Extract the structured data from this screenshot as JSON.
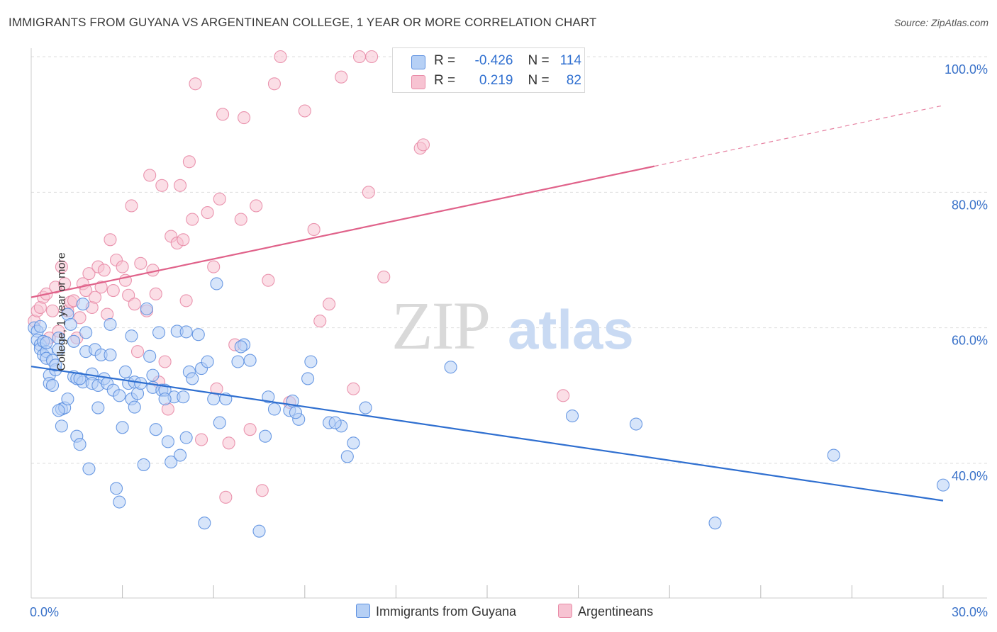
{
  "title": "IMMIGRANTS FROM GUYANA VS ARGENTINEAN COLLEGE, 1 YEAR OR MORE CORRELATION CHART",
  "source": "Source: ZipAtlas.com",
  "watermark": {
    "zip": "ZIP",
    "atlas": "atlas"
  },
  "colors": {
    "blue_fill": "#b6d0f5",
    "blue_stroke": "#5b8fe0",
    "blue_line": "#2f6fd0",
    "pink_fill": "#f7c3d2",
    "pink_stroke": "#e88aa6",
    "pink_line": "#e0628a",
    "axis_text": "#3a72c9",
    "grid": "#dddddd"
  },
  "legend": {
    "rows": [
      {
        "r_label": "R =",
        "r_value": "-0.426",
        "n_label": "N =",
        "n_value": "114"
      },
      {
        "r_label": "R =",
        "r_value": "0.219",
        "n_label": "N =",
        "n_value": "82"
      }
    ]
  },
  "bottom_legend": {
    "series_a": "Immigrants from Guyana",
    "series_b": "Argentineans"
  },
  "chart_data": {
    "type": "scatter",
    "xlabel": "",
    "ylabel": "College, 1 year or more",
    "xlim": [
      0,
      30
    ],
    "ylim": [
      22,
      103
    ],
    "x_tick_labels": [
      {
        "value": 0,
        "label": "0.0%"
      },
      {
        "value": 30,
        "label": "30.0%"
      }
    ],
    "y_tick_labels": [
      {
        "value": 40,
        "label": "40.0%"
      },
      {
        "value": 60,
        "label": "60.0%"
      },
      {
        "value": 80,
        "label": "80.0%"
      },
      {
        "value": 100,
        "label": "100.0%"
      }
    ],
    "grid": "horizontal dashed",
    "series": [
      {
        "name": "Immigrants from Guyana",
        "trend": {
          "x": [
            0,
            30
          ],
          "y": [
            54.3,
            34.5
          ],
          "style": "solid"
        },
        "points": [
          [
            0.1,
            60.0
          ],
          [
            0.2,
            59.5
          ],
          [
            0.2,
            58.2
          ],
          [
            0.3,
            57.5
          ],
          [
            0.3,
            56.9
          ],
          [
            0.4,
            56.0
          ],
          [
            0.4,
            58.0
          ],
          [
            0.5,
            56.5
          ],
          [
            0.5,
            55.5
          ],
          [
            0.6,
            53.0
          ],
          [
            0.6,
            51.8
          ],
          [
            0.7,
            51.5
          ],
          [
            0.7,
            55.2
          ],
          [
            0.8,
            53.8
          ],
          [
            0.8,
            54.5
          ],
          [
            0.9,
            58.5
          ],
          [
            0.9,
            56.8
          ],
          [
            1.0,
            48.0
          ],
          [
            1.0,
            45.5
          ],
          [
            1.1,
            48.2
          ],
          [
            1.2,
            49.5
          ],
          [
            1.2,
            62.0
          ],
          [
            1.3,
            60.5
          ],
          [
            1.4,
            58.0
          ],
          [
            1.4,
            52.8
          ],
          [
            1.5,
            52.5
          ],
          [
            1.5,
            44.0
          ],
          [
            1.6,
            42.8
          ],
          [
            1.7,
            52.0
          ],
          [
            1.7,
            63.5
          ],
          [
            1.8,
            59.3
          ],
          [
            1.8,
            56.5
          ],
          [
            1.9,
            39.2
          ],
          [
            2.0,
            53.2
          ],
          [
            2.0,
            51.8
          ],
          [
            2.1,
            56.8
          ],
          [
            2.2,
            51.5
          ],
          [
            2.2,
            48.2
          ],
          [
            2.3,
            56.0
          ],
          [
            2.4,
            52.5
          ],
          [
            2.5,
            51.8
          ],
          [
            2.6,
            60.5
          ],
          [
            2.6,
            56.0
          ],
          [
            2.7,
            50.8
          ],
          [
            2.8,
            36.3
          ],
          [
            2.9,
            34.3
          ],
          [
            3.0,
            45.3
          ],
          [
            3.1,
            53.5
          ],
          [
            3.2,
            51.8
          ],
          [
            3.3,
            49.5
          ],
          [
            3.3,
            58.8
          ],
          [
            3.4,
            52.0
          ],
          [
            3.5,
            50.3
          ],
          [
            3.6,
            51.8
          ],
          [
            3.7,
            39.8
          ],
          [
            3.8,
            62.8
          ],
          [
            3.9,
            55.8
          ],
          [
            4.0,
            51.2
          ],
          [
            4.1,
            45.0
          ],
          [
            4.2,
            59.3
          ],
          [
            4.3,
            50.8
          ],
          [
            4.4,
            50.8
          ],
          [
            4.5,
            43.2
          ],
          [
            4.6,
            40.2
          ],
          [
            4.7,
            49.8
          ],
          [
            4.8,
            59.5
          ],
          [
            4.9,
            41.2
          ],
          [
            5.0,
            49.8
          ],
          [
            5.1,
            43.8
          ],
          [
            5.2,
            53.5
          ],
          [
            5.3,
            52.5
          ],
          [
            5.5,
            59.0
          ],
          [
            5.6,
            54.0
          ],
          [
            5.7,
            31.2
          ],
          [
            5.8,
            55.0
          ],
          [
            6.0,
            49.5
          ],
          [
            6.1,
            66.5
          ],
          [
            6.2,
            46.0
          ],
          [
            6.4,
            49.5
          ],
          [
            6.8,
            55.0
          ],
          [
            7.0,
            57.5
          ],
          [
            7.2,
            55.2
          ],
          [
            7.5,
            30.0
          ],
          [
            7.8,
            49.8
          ],
          [
            8.0,
            48.0
          ],
          [
            8.5,
            47.8
          ],
          [
            8.6,
            49.2
          ],
          [
            8.8,
            46.5
          ],
          [
            9.1,
            52.5
          ],
          [
            9.2,
            55.0
          ],
          [
            9.8,
            46.0
          ],
          [
            10.2,
            45.5
          ],
          [
            10.4,
            41.0
          ],
          [
            10.6,
            43.0
          ],
          [
            11.0,
            48.2
          ],
          [
            13.8,
            54.2
          ],
          [
            17.8,
            47.0
          ],
          [
            19.9,
            45.8
          ],
          [
            22.5,
            31.2
          ],
          [
            26.4,
            41.2
          ],
          [
            30.0,
            36.8
          ],
          [
            0.3,
            60.2
          ],
          [
            0.5,
            57.8
          ],
          [
            0.9,
            47.8
          ],
          [
            1.6,
            52.5
          ],
          [
            2.9,
            50.0
          ],
          [
            3.4,
            48.3
          ],
          [
            4.0,
            53.0
          ],
          [
            4.4,
            49.5
          ],
          [
            5.1,
            59.4
          ],
          [
            6.9,
            57.2
          ],
          [
            7.7,
            44.0
          ],
          [
            10.0,
            46.0
          ],
          [
            8.7,
            47.5
          ]
        ]
      },
      {
        "name": "Argentineans",
        "trend": {
          "x": [
            0,
            30
          ],
          "y": [
            64.5,
            92.8
          ],
          "solid_until_x": 20.5
        },
        "points": [
          [
            0.1,
            61.0
          ],
          [
            0.2,
            62.5
          ],
          [
            0.3,
            63.0
          ],
          [
            0.4,
            64.5
          ],
          [
            0.5,
            65.0
          ],
          [
            0.6,
            58.5
          ],
          [
            0.7,
            62.5
          ],
          [
            0.8,
            66.0
          ],
          [
            0.9,
            59.5
          ],
          [
            1.0,
            69.0
          ],
          [
            1.1,
            66.5
          ],
          [
            1.2,
            62.5
          ],
          [
            1.3,
            63.8
          ],
          [
            1.4,
            64.0
          ],
          [
            1.5,
            58.5
          ],
          [
            1.6,
            61.5
          ],
          [
            1.7,
            66.5
          ],
          [
            1.8,
            65.5
          ],
          [
            1.9,
            68.0
          ],
          [
            2.0,
            63.0
          ],
          [
            2.1,
            64.5
          ],
          [
            2.2,
            69.0
          ],
          [
            2.3,
            66.0
          ],
          [
            2.4,
            68.5
          ],
          [
            2.5,
            62.0
          ],
          [
            2.6,
            73.0
          ],
          [
            2.7,
            65.5
          ],
          [
            2.8,
            70.0
          ],
          [
            3.0,
            69.0
          ],
          [
            3.1,
            67.0
          ],
          [
            3.2,
            64.8
          ],
          [
            3.3,
            78.0
          ],
          [
            3.4,
            63.5
          ],
          [
            3.5,
            56.5
          ],
          [
            3.6,
            69.5
          ],
          [
            3.8,
            62.5
          ],
          [
            3.9,
            82.5
          ],
          [
            4.0,
            68.5
          ],
          [
            4.1,
            65.0
          ],
          [
            4.2,
            52.0
          ],
          [
            4.3,
            81.0
          ],
          [
            4.4,
            55.0
          ],
          [
            4.5,
            48.0
          ],
          [
            4.6,
            73.5
          ],
          [
            4.8,
            72.5
          ],
          [
            4.9,
            81.0
          ],
          [
            5.0,
            73.0
          ],
          [
            5.1,
            64.0
          ],
          [
            5.2,
            84.5
          ],
          [
            5.3,
            76.0
          ],
          [
            5.4,
            96.0
          ],
          [
            5.6,
            43.5
          ],
          [
            5.8,
            77.0
          ],
          [
            6.0,
            69.0
          ],
          [
            6.1,
            51.0
          ],
          [
            6.2,
            79.0
          ],
          [
            6.3,
            91.5
          ],
          [
            6.4,
            35.0
          ],
          [
            6.5,
            43.0
          ],
          [
            6.7,
            57.5
          ],
          [
            6.9,
            76.0
          ],
          [
            7.0,
            91.0
          ],
          [
            7.2,
            45.0
          ],
          [
            7.4,
            78.0
          ],
          [
            7.6,
            36.0
          ],
          [
            7.8,
            67.0
          ],
          [
            8.0,
            96.0
          ],
          [
            8.5,
            49.0
          ],
          [
            9.0,
            92.0
          ],
          [
            9.3,
            74.5
          ],
          [
            9.8,
            63.5
          ],
          [
            10.2,
            97.0
          ],
          [
            10.6,
            51.0
          ],
          [
            10.8,
            100.0
          ],
          [
            11.1,
            80.0
          ],
          [
            11.2,
            100.0
          ],
          [
            11.6,
            67.5
          ],
          [
            12.8,
            86.5
          ],
          [
            12.9,
            87.0
          ],
          [
            17.5,
            50.0
          ],
          [
            8.2,
            100.0
          ],
          [
            9.5,
            61.0
          ]
        ]
      }
    ]
  }
}
